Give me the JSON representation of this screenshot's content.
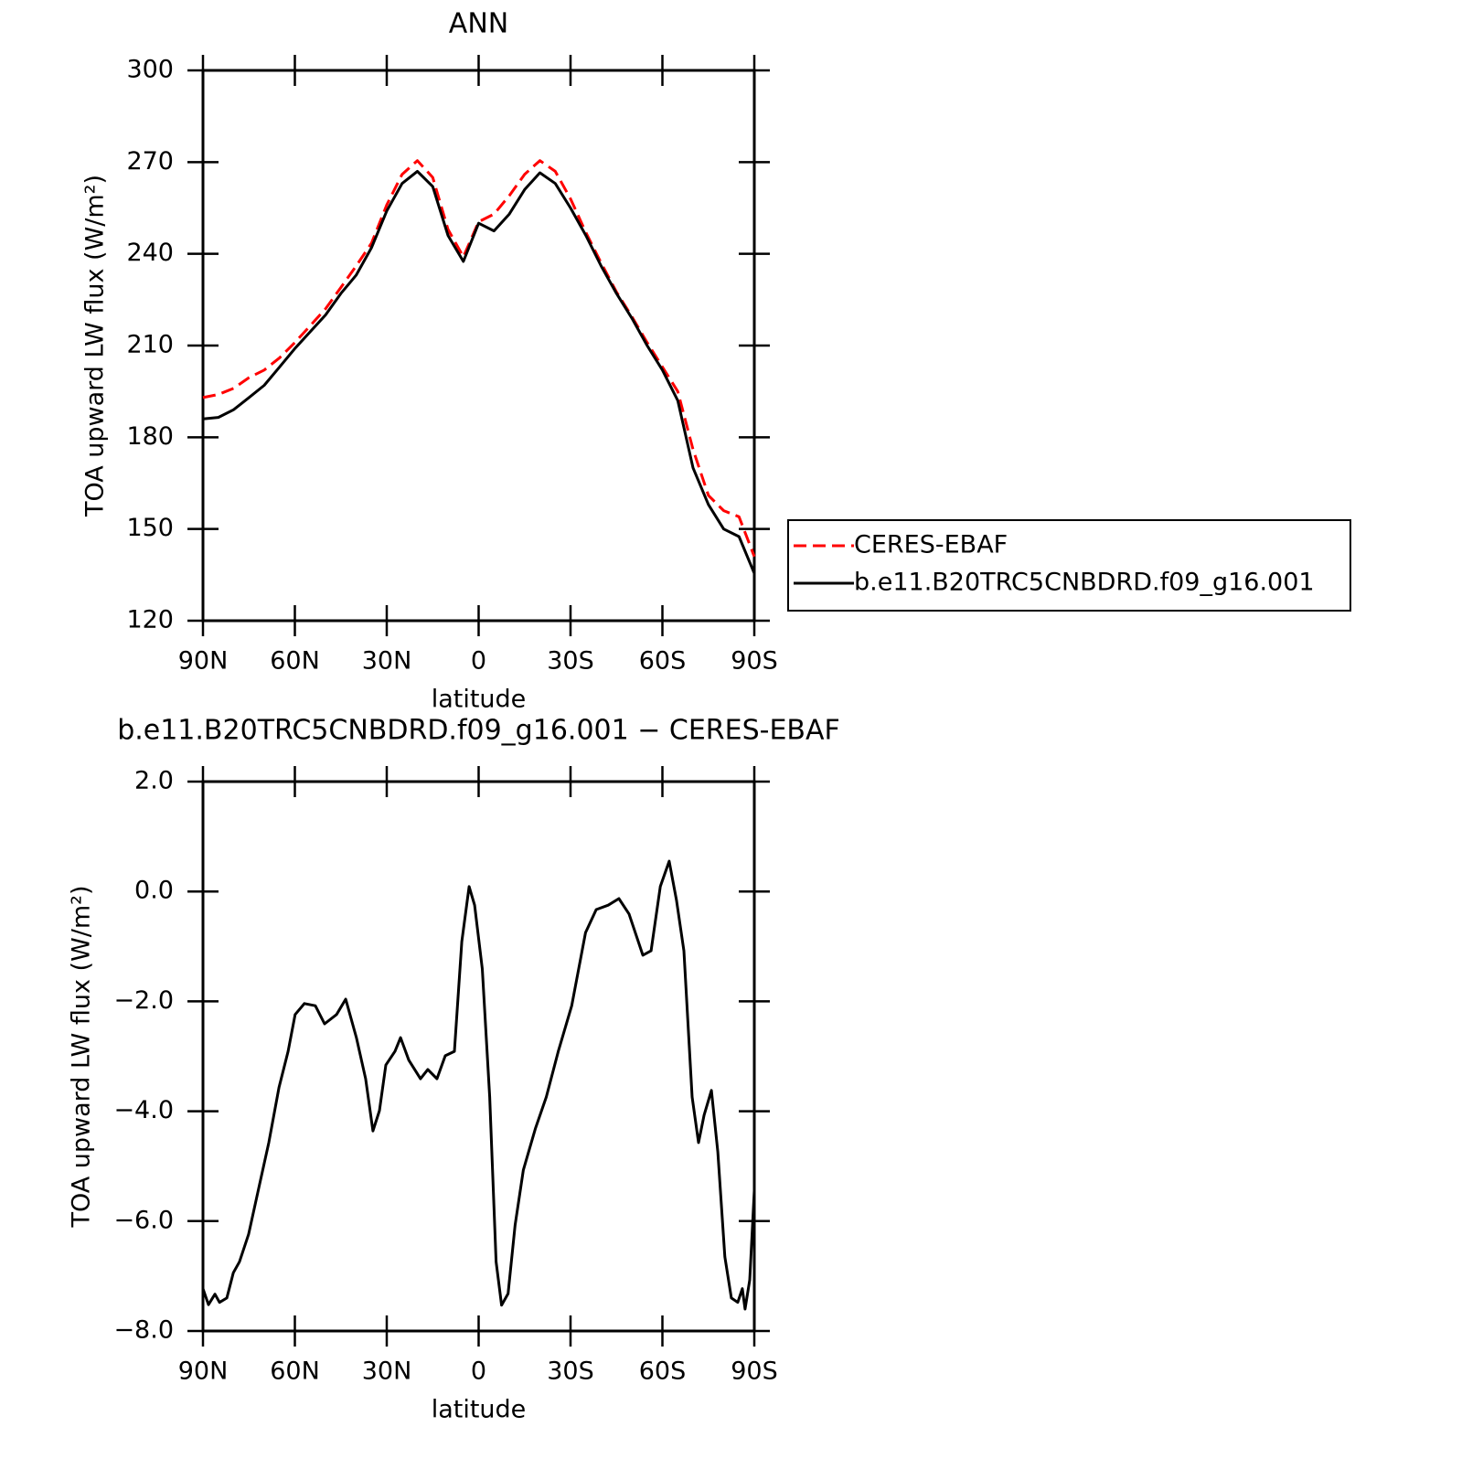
{
  "chart_data": [
    {
      "type": "line",
      "title": "ANN",
      "xlabel": "latitude",
      "ylabel": "TOA upward LW flux (W/m²)",
      "x": [
        90,
        85,
        80,
        75,
        70,
        65,
        60,
        55,
        50,
        45,
        40,
        35,
        30,
        25,
        20,
        15,
        10,
        5,
        0,
        -5,
        -10,
        -15,
        -20,
        -25,
        -30,
        -35,
        -40,
        -45,
        -50,
        -55,
        -60,
        -65,
        -70,
        -75,
        -80,
        -85,
        -90
      ],
      "series": [
        {
          "name": "CERES-EBAF",
          "color": "#ff0000",
          "dash": true,
          "values": [
            193,
            194,
            196,
            199.5,
            202,
            206,
            211,
            216.5,
            222,
            229,
            236,
            243.5,
            256,
            266,
            270.5,
            265,
            248,
            239,
            250.5,
            253,
            259,
            266,
            270.5,
            267,
            258,
            247,
            237,
            227.5,
            219.5,
            211,
            203,
            195,
            176,
            161,
            156,
            154,
            141
          ]
        },
        {
          "name": "b.e11.B20TRC5CNBDRD.f09_g16.001",
          "color": "#000000",
          "dash": false,
          "values": [
            186,
            186.5,
            189,
            193,
            197,
            203,
            209,
            214.5,
            220,
            227,
            233,
            242,
            254,
            263,
            267,
            262,
            246,
            237.5,
            250,
            247.5,
            253,
            261,
            266.5,
            263,
            255,
            246,
            236,
            227,
            219,
            210,
            202,
            192,
            170,
            158,
            150,
            147.5,
            135.5
          ]
        }
      ],
      "xlim": [
        90,
        -90
      ],
      "xticks": [
        {
          "value": 90,
          "label": "90N"
        },
        {
          "value": 60,
          "label": "60N"
        },
        {
          "value": 30,
          "label": "30N"
        },
        0,
        {
          "value": -30,
          "label": "30S"
        },
        {
          "value": -60,
          "label": "60S"
        },
        {
          "value": -90,
          "label": "90S"
        }
      ],
      "ylim": [
        120,
        300
      ],
      "yticks": [
        120,
        150,
        180,
        210,
        240,
        270,
        300
      ],
      "legend": "right"
    },
    {
      "type": "line",
      "title": "b.e11.B20TRC5CNBDRD.f09_g16.001 − CERES-EBAF",
      "xlabel": "latitude",
      "ylabel": "TOA upward LW flux (W/m²)",
      "x": [
        90,
        88.2,
        86.1,
        84.6,
        82.2,
        80.1,
        78.1,
        75.1,
        71.8,
        68.5,
        65.2,
        62.2,
        59.9,
        56.9,
        53.3,
        50.3,
        46.4,
        43.4,
        39.9,
        36.9,
        34.5,
        32.4,
        30.3,
        27.3,
        25.5,
        22.8,
        19.0,
        16.6,
        13.6,
        10.9,
        7.9,
        5.5,
        3.1,
        1.3,
        -1.2,
        -3.6,
        -5.7,
        -7.5,
        -9.6,
        -11.9,
        -14.6,
        -18.5,
        -22.1,
        -26.0,
        -30.4,
        -34.9,
        -38.4,
        -42.3,
        -45.8,
        -49.1,
        -53.6,
        -56.3,
        -59.3,
        -62.2,
        -64.6,
        -67.0,
        -69.7,
        -71.8,
        -73.6,
        -76.0,
        -78.1,
        -80.4,
        -82.5,
        -84.6,
        -86.1,
        -87.0,
        -88.5,
        -90
      ],
      "series": [
        {
          "color": "#000000",
          "values": [
            -7.23,
            -7.52,
            -7.33,
            -7.48,
            -7.4,
            -6.94,
            -6.74,
            -6.24,
            -5.4,
            -4.57,
            -3.57,
            -2.91,
            -2.24,
            -2.04,
            -2.08,
            -2.41,
            -2.24,
            -1.96,
            -2.66,
            -3.41,
            -4.36,
            -3.99,
            -3.16,
            -2.91,
            -2.66,
            -3.07,
            -3.41,
            -3.24,
            -3.41,
            -2.99,
            -2.91,
            -0.91,
            0.09,
            -0.25,
            -1.41,
            -3.74,
            -6.74,
            -7.53,
            -7.32,
            -6.07,
            -5.07,
            -4.32,
            -3.74,
            -2.91,
            -2.08,
            -0.75,
            -0.33,
            -0.25,
            -0.13,
            -0.41,
            -1.16,
            -1.08,
            0.09,
            0.55,
            -0.16,
            -1.08,
            -3.74,
            -4.57,
            -4.07,
            -3.62,
            -4.74,
            -6.65,
            -7.4,
            -7.48,
            -7.23,
            -7.6,
            -7.07,
            -5.45
          ]
        }
      ],
      "xlim": [
        90,
        -90
      ],
      "xticks": [
        {
          "value": 90,
          "label": "90N"
        },
        {
          "value": 60,
          "label": "60N"
        },
        {
          "value": 30,
          "label": "30N"
        },
        0,
        {
          "value": -30,
          "label": "30S"
        },
        {
          "value": -60,
          "label": "60S"
        },
        {
          "value": -90,
          "label": "90S"
        }
      ],
      "ylim": [
        -8,
        2
      ],
      "yticks": [
        {
          "value": -8,
          "label": "−8.0"
        },
        {
          "value": -6,
          "label": "−6.0"
        },
        {
          "value": -4,
          "label": "−4.0"
        },
        {
          "value": -2,
          "label": "−2.0"
        },
        {
          "value": 0,
          "label": "0.0"
        },
        {
          "value": 2,
          "label": "2.0"
        }
      ]
    }
  ]
}
